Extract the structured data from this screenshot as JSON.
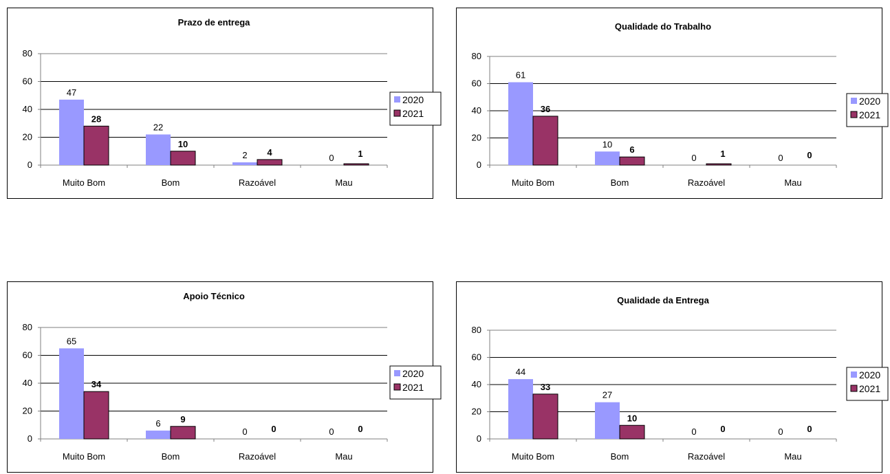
{
  "colors": {
    "series_2020": "#9999ff",
    "series_2021": "#993366",
    "grid": "#000000",
    "axis": "#7f7f7f"
  },
  "chart_data": [
    {
      "type": "bar",
      "title": "Prazo de entrega",
      "categories": [
        "Muito Bom",
        "Bom",
        "Razoável",
        "Mau"
      ],
      "ylim": [
        0,
        80
      ],
      "yticks": [
        "0",
        "20",
        "40",
        "60",
        "80"
      ],
      "grid": true,
      "legend": "right",
      "series": [
        {
          "name": "2020",
          "values": [
            47,
            22,
            2,
            0
          ]
        },
        {
          "name": "2021",
          "values": [
            28,
            10,
            4,
            1
          ]
        }
      ]
    },
    {
      "type": "bar",
      "title": "Qualidade do Trabalho",
      "categories": [
        "Muito Bom",
        "Bom",
        "Razoável",
        "Mau"
      ],
      "ylim": [
        0,
        80
      ],
      "yticks": [
        "0",
        "20",
        "40",
        "60",
        "80"
      ],
      "grid": true,
      "legend": "right",
      "series": [
        {
          "name": "2020",
          "values": [
            61,
            10,
            0,
            0
          ]
        },
        {
          "name": "2021",
          "values": [
            36,
            6,
            1,
            0
          ]
        }
      ]
    },
    {
      "type": "bar",
      "title": "Apoio Técnico",
      "categories": [
        "Muito Bom",
        "Bom",
        "Razoável",
        "Mau"
      ],
      "ylim": [
        0,
        80
      ],
      "yticks": [
        "0",
        "20",
        "40",
        "60",
        "80"
      ],
      "grid": true,
      "legend": "right",
      "series": [
        {
          "name": "2020",
          "values": [
            65,
            6,
            0,
            0
          ]
        },
        {
          "name": "2021",
          "values": [
            34,
            9,
            0,
            0
          ]
        }
      ]
    },
    {
      "type": "bar",
      "title": "Qualidade da Entrega",
      "categories": [
        "Muito Bom",
        "Bom",
        "Razoável",
        "Mau"
      ],
      "ylim": [
        0,
        80
      ],
      "yticks": [
        "0",
        "20",
        "40",
        "60",
        "80"
      ],
      "grid": true,
      "legend": "right",
      "series": [
        {
          "name": "2020",
          "values": [
            44,
            27,
            0,
            0
          ]
        },
        {
          "name": "2021",
          "values": [
            33,
            10,
            0,
            0
          ]
        }
      ]
    }
  ]
}
